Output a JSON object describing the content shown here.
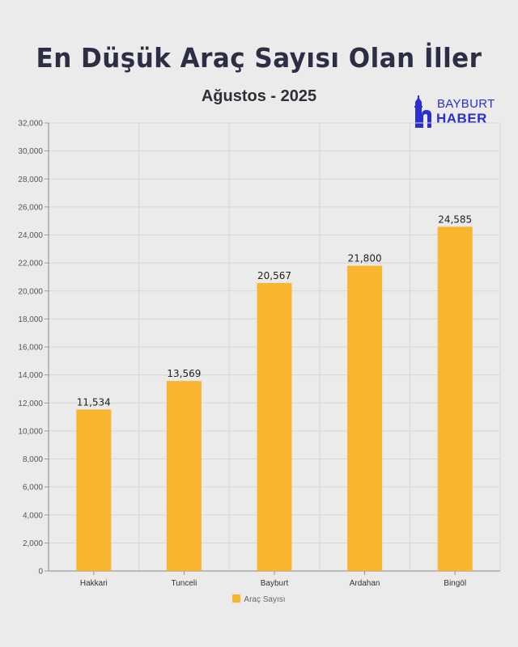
{
  "header": {
    "title": "En Düşük Araç Sayısı Olan İller",
    "subtitle": "Ağustos - 2025"
  },
  "logo": {
    "line1": "BAYBURT",
    "line2": "HABER",
    "color": "#2b2fd0"
  },
  "chart_data": {
    "type": "bar",
    "categories": [
      "Hakkari",
      "Tunceli",
      "Bayburt",
      "Ardahan",
      "Bingöl"
    ],
    "series": [
      {
        "name": "Araç Sayısı",
        "values": [
          11534,
          13569,
          20567,
          21800,
          24585
        ]
      }
    ],
    "data_labels": [
      "11,534",
      "13,569",
      "20,567",
      "21,800",
      "24,585"
    ],
    "ylim": [
      0,
      32000
    ],
    "y_ticks": [
      "0",
      "2,000",
      "4,000",
      "6,000",
      "8,000",
      "10,000",
      "12,000",
      "14,000",
      "16,000",
      "18,000",
      "20,000",
      "22,000",
      "24,000",
      "26,000",
      "28,000",
      "30,000",
      "32,000"
    ],
    "y_tick_values": [
      0,
      2000,
      4000,
      6000,
      8000,
      10000,
      12000,
      14000,
      16000,
      18000,
      20000,
      22000,
      24000,
      26000,
      28000,
      30000,
      32000
    ],
    "grid": true,
    "legend_position": "bottom",
    "bar_color": "#f8b52f"
  }
}
